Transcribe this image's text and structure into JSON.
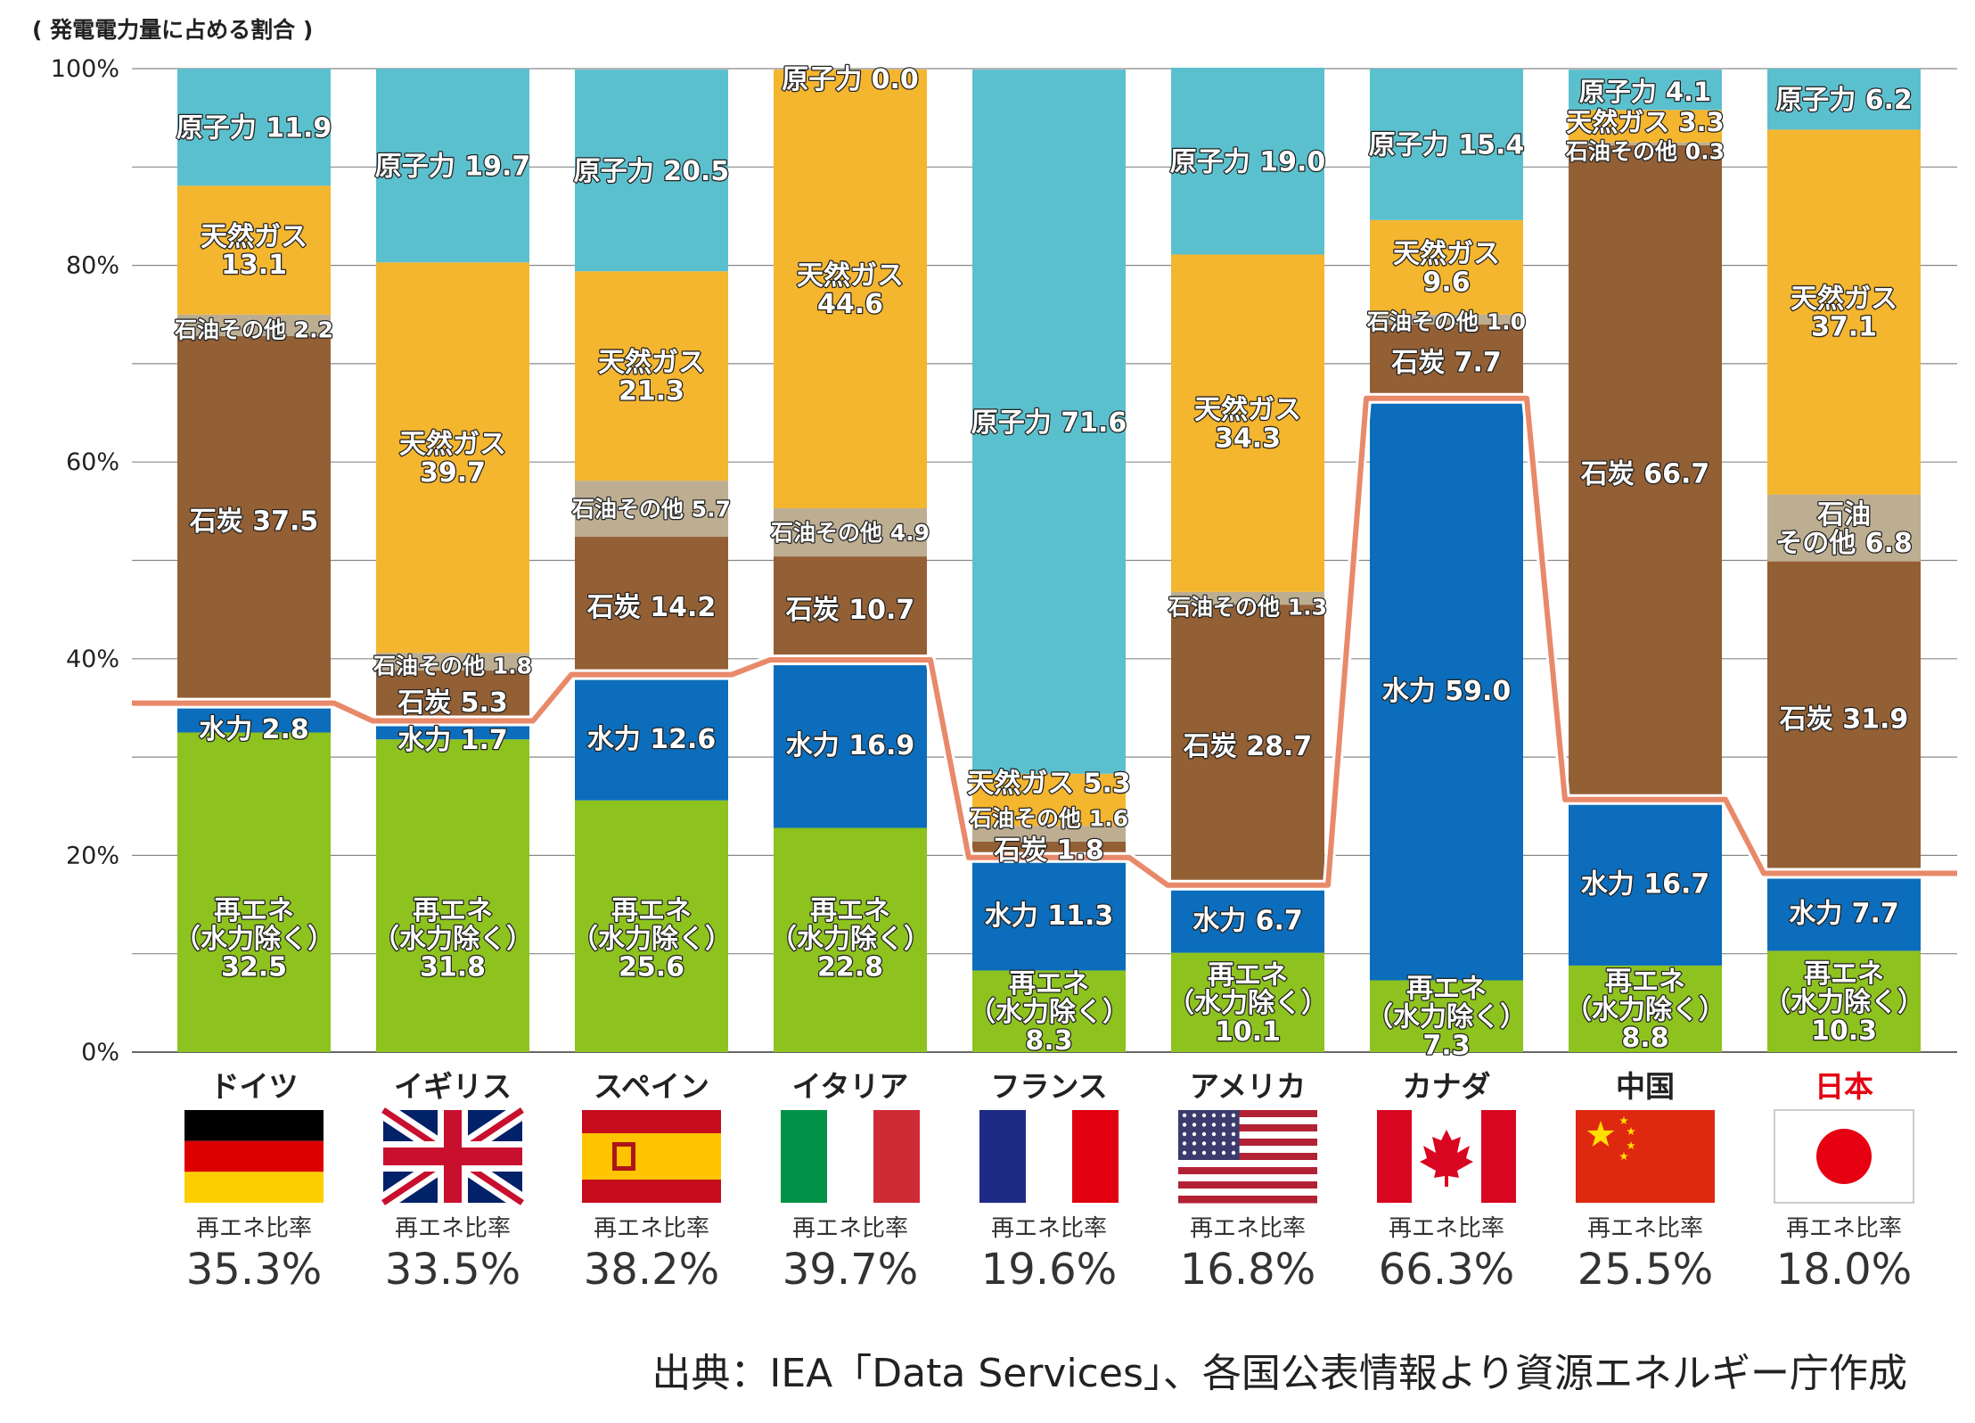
{
  "unit_label": "( 発電電力量に占める割合 )",
  "source_text": "出典：IEA「Data Services」、各国公表情報より資源エネルギー庁作成",
  "colors": {
    "renewable": "#8dc21f",
    "hydro": "#0b6dbb",
    "coal": "#935f34",
    "oil_other": "#bdae92",
    "gas": "#f4b52f",
    "nuclear": "#5bc0ce",
    "renewable_line": "#e8896a",
    "japan_label": "#e50012",
    "grid": "#888888"
  },
  "chart_data": {
    "type": "bar",
    "stacked": true,
    "y_unit": "発電電力量に占める割合",
    "ylim": [
      0,
      100
    ],
    "yticks": [
      "0%",
      "20%",
      "40%",
      "60%",
      "80%",
      "100%"
    ],
    "grid": true,
    "categories": [
      "ドイツ",
      "イギリス",
      "スペイン",
      "イタリア",
      "フランス",
      "アメリカ",
      "カナダ",
      "中国",
      "日本"
    ],
    "series": [
      {
        "name": "再エネ（水力除く）",
        "key": "renewable",
        "values": [
          32.5,
          31.8,
          25.6,
          22.8,
          8.3,
          10.1,
          7.3,
          8.8,
          10.3
        ]
      },
      {
        "name": "水力",
        "key": "hydro",
        "values": [
          2.8,
          1.7,
          12.6,
          16.9,
          11.3,
          6.7,
          59.0,
          16.7,
          7.7
        ]
      },
      {
        "name": "石炭",
        "key": "coal",
        "values": [
          37.5,
          5.3,
          14.2,
          10.7,
          1.8,
          28.7,
          7.7,
          66.7,
          31.9
        ]
      },
      {
        "name": "石油その他",
        "key": "oil_other",
        "values": [
          2.2,
          1.8,
          5.7,
          4.9,
          1.6,
          1.3,
          1.0,
          0.3,
          6.8
        ]
      },
      {
        "name": "天然ガス",
        "key": "gas",
        "values": [
          13.1,
          39.7,
          21.3,
          44.6,
          5.3,
          34.3,
          9.6,
          3.3,
          37.1
        ]
      },
      {
        "name": "原子力",
        "key": "nuclear",
        "values": [
          11.9,
          19.7,
          20.5,
          0.0,
          71.6,
          19.0,
          15.4,
          4.1,
          6.2
        ]
      }
    ],
    "segment_labels": {
      "renewable": [
        "再エネ\n（水力除く）\n32.5",
        "再エネ\n（水力除く）\n31.8",
        "再エネ\n（水力除く）\n25.6",
        "再エネ\n（水力除く）\n22.8",
        "再エネ\n（水力除く）\n8.3",
        "再エネ\n（水力除く）\n10.1",
        "再エネ\n（水力除く）\n7.3",
        "再エネ\n（水力除く）\n8.8",
        "再エネ\n（水力除く）\n10.3"
      ],
      "hydro": [
        "水力 2.8",
        "水力 1.7",
        "水力 12.6",
        "水力 16.9",
        "水力 11.3",
        "水力 6.7",
        "水力 59.0",
        "水力 16.7",
        "水力 7.7"
      ],
      "coal": [
        "石炭 37.5",
        "石炭 5.3",
        "石炭 14.2",
        "石炭 10.7",
        "石炭 1.8",
        "石炭 28.7",
        "石炭 7.7",
        "石炭 66.7",
        "石炭 31.9"
      ],
      "oil_other": [
        "石油その他 2.2",
        "石油その他 1.8",
        "石油その他 5.7",
        "石油その他 4.9",
        "石油その他 1.6",
        "石油その他 1.3",
        "石油その他 1.0",
        "石油その他 0.3",
        "石油\nその他 6.8"
      ],
      "gas": [
        "天然ガス\n13.1",
        "天然ガス\n39.7",
        "天然ガス\n21.3",
        "天然ガス\n44.6",
        "天然ガス 5.3",
        "天然ガス\n34.3",
        "天然ガス\n9.6",
        "天然ガス 3.3",
        "天然ガス\n37.1"
      ],
      "nuclear": [
        "原子力 11.9",
        "原子力 19.7",
        "原子力 20.5",
        "原子力 0.0",
        "原子力 71.6",
        "原子力 19.0",
        "原子力 15.4",
        "原子力 4.1",
        "原子力 6.2"
      ]
    },
    "renewable_ratio": {
      "label": "再エネ比率",
      "values": [
        "35.3%",
        "33.5%",
        "38.2%",
        "39.7%",
        "19.6%",
        "16.8%",
        "66.3%",
        "25.5%",
        "18.0%"
      ],
      "numeric": [
        35.3,
        33.5,
        38.2,
        39.7,
        19.6,
        16.8,
        66.3,
        25.5,
        18.0
      ]
    },
    "highlight_category": "日本",
    "flags": [
      "germany",
      "uk",
      "spain",
      "italy",
      "france",
      "usa",
      "canada",
      "china",
      "japan"
    ]
  }
}
